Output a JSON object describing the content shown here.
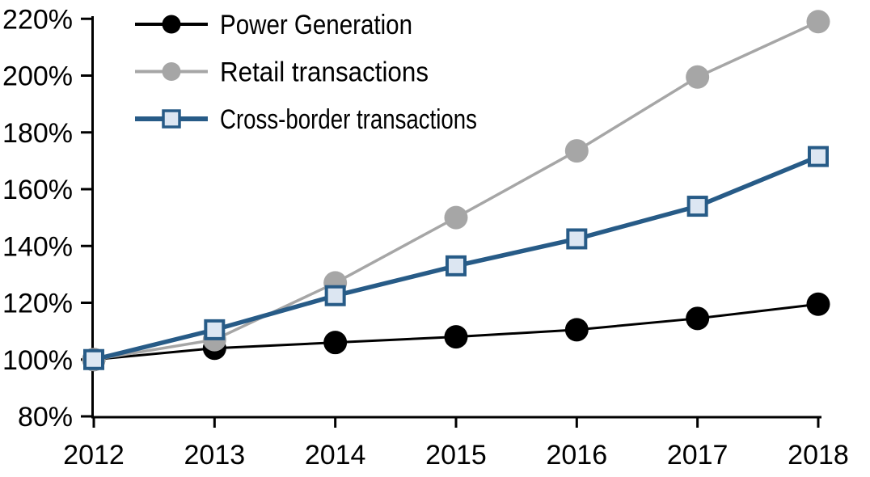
{
  "chart_data": {
    "type": "line",
    "title": "",
    "xlabel": "",
    "ylabel": "",
    "categories": [
      "2012",
      "2013",
      "2014",
      "2015",
      "2016",
      "2017",
      "2018"
    ],
    "series": [
      {
        "name": "Power Generation",
        "values": [
          100,
          104,
          106,
          108,
          110.5,
          114.5,
          119.5
        ],
        "color": "#000000",
        "marker": "circle",
        "marker_fill": "#000000",
        "line_width": 3
      },
      {
        "name": "Retail transactions",
        "values": [
          100,
          107,
          127,
          150,
          173.5,
          199.5,
          219
        ],
        "color": "#A6A6A6",
        "marker": "circle",
        "marker_fill": "#A6A6A6",
        "line_width": 3.5
      },
      {
        "name": "Cross-border transactions",
        "values": [
          100,
          110.5,
          122.5,
          133,
          142.5,
          154,
          171.5
        ],
        "color": "#275B87",
        "marker": "square",
        "marker_fill": "#DCE6F2",
        "line_width": 5.5
      }
    ],
    "ylim": [
      80,
      220
    ],
    "ytick_step": 20,
    "y_tick_labels": [
      "80%",
      "100%",
      "120%",
      "140%",
      "160%",
      "180%",
      "200%",
      "220%"
    ],
    "ytick_suffix": "%",
    "grid": false,
    "legend_position": "inside-top-left",
    "legend_entries": [
      "Power Generation",
      "Retail transactions",
      "Cross-border transactions"
    ],
    "axis_color": "#000000",
    "background_color": "#FFFFFF"
  }
}
